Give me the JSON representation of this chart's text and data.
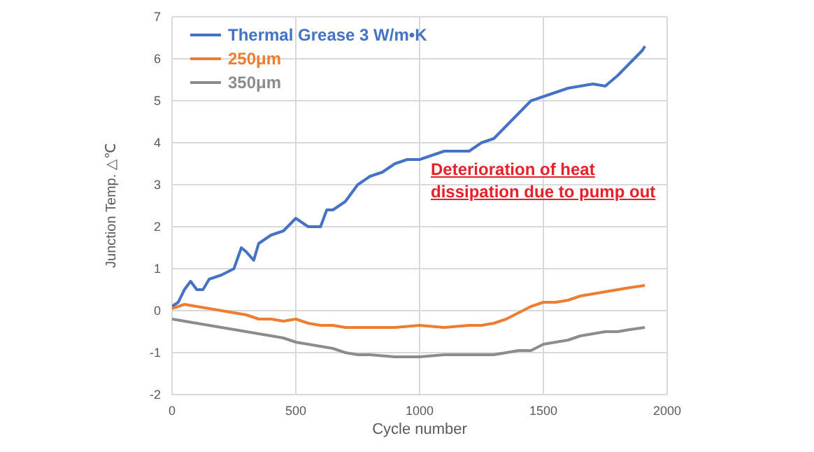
{
  "chart_data": {
    "type": "line",
    "xlabel": "Cycle number",
    "ylabel": "Junction Temp. △℃",
    "xlim": [
      0,
      2000
    ],
    "xticks": [
      0,
      500,
      1000,
      1500,
      2000
    ],
    "ylim": [
      -2,
      7
    ],
    "yticks": [
      -2,
      -1,
      0,
      1,
      2,
      3,
      4,
      5,
      6,
      7
    ],
    "grid": true,
    "legend": "top left",
    "marker": "none",
    "line_style": "solid",
    "annotations": [
      "Deterioration of heat dissipation  due to pump out"
    ],
    "series": [
      {
        "name": "Thermal Grease 3 W/m•K",
        "color": "#4472c4",
        "x": [
          0,
          25,
          50,
          75,
          100,
          125,
          150,
          200,
          250,
          280,
          300,
          330,
          350,
          400,
          450,
          500,
          550,
          600,
          625,
          650,
          700,
          750,
          800,
          850,
          900,
          950,
          1000,
          1050,
          1100,
          1150,
          1200,
          1250,
          1300,
          1350,
          1400,
          1450,
          1500,
          1550,
          1600,
          1650,
          1700,
          1750,
          1800,
          1850,
          1900,
          1910
        ],
        "values": [
          0.1,
          0.2,
          0.5,
          0.7,
          0.5,
          0.5,
          0.75,
          0.85,
          1.0,
          1.5,
          1.4,
          1.2,
          1.6,
          1.8,
          1.9,
          2.2,
          2.0,
          2.0,
          2.4,
          2.4,
          2.6,
          3.0,
          3.2,
          3.3,
          3.5,
          3.6,
          3.6,
          3.7,
          3.8,
          3.8,
          3.8,
          4.0,
          4.1,
          4.4,
          4.7,
          5.0,
          5.1,
          5.2,
          5.3,
          5.35,
          5.4,
          5.35,
          5.6,
          5.9,
          6.2,
          6.3
        ]
      },
      {
        "name": "250μm",
        "color": "#ed7d31",
        "x": [
          0,
          50,
          100,
          150,
          200,
          250,
          300,
          350,
          400,
          450,
          500,
          550,
          600,
          650,
          700,
          800,
          900,
          1000,
          1100,
          1200,
          1250,
          1300,
          1350,
          1400,
          1450,
          1500,
          1550,
          1600,
          1650,
          1700,
          1750,
          1800,
          1850,
          1910
        ],
        "values": [
          0.05,
          0.15,
          0.1,
          0.05,
          0,
          -0.05,
          -0.1,
          -0.2,
          -0.2,
          -0.25,
          -0.2,
          -0.3,
          -0.35,
          -0.35,
          -0.4,
          -0.4,
          -0.4,
          -0.35,
          -0.4,
          -0.35,
          -0.35,
          -0.3,
          -0.2,
          -0.05,
          0.1,
          0.2,
          0.2,
          0.25,
          0.35,
          0.4,
          0.45,
          0.5,
          0.55,
          0.6
        ]
      },
      {
        "name": "350μm",
        "color": "#8c8c8c",
        "x": [
          0,
          50,
          100,
          150,
          200,
          250,
          300,
          350,
          400,
          450,
          500,
          550,
          600,
          650,
          700,
          750,
          800,
          900,
          1000,
          1100,
          1200,
          1300,
          1400,
          1450,
          1500,
          1550,
          1600,
          1650,
          1700,
          1750,
          1800,
          1850,
          1910
        ],
        "values": [
          -0.2,
          -0.25,
          -0.3,
          -0.35,
          -0.4,
          -0.45,
          -0.5,
          -0.55,
          -0.6,
          -0.65,
          -0.75,
          -0.8,
          -0.85,
          -0.9,
          -1.0,
          -1.05,
          -1.05,
          -1.1,
          -1.1,
          -1.05,
          -1.05,
          -1.05,
          -0.95,
          -0.95,
          -0.8,
          -0.75,
          -0.7,
          -0.6,
          -0.55,
          -0.5,
          -0.5,
          -0.45,
          -0.4
        ]
      }
    ]
  }
}
